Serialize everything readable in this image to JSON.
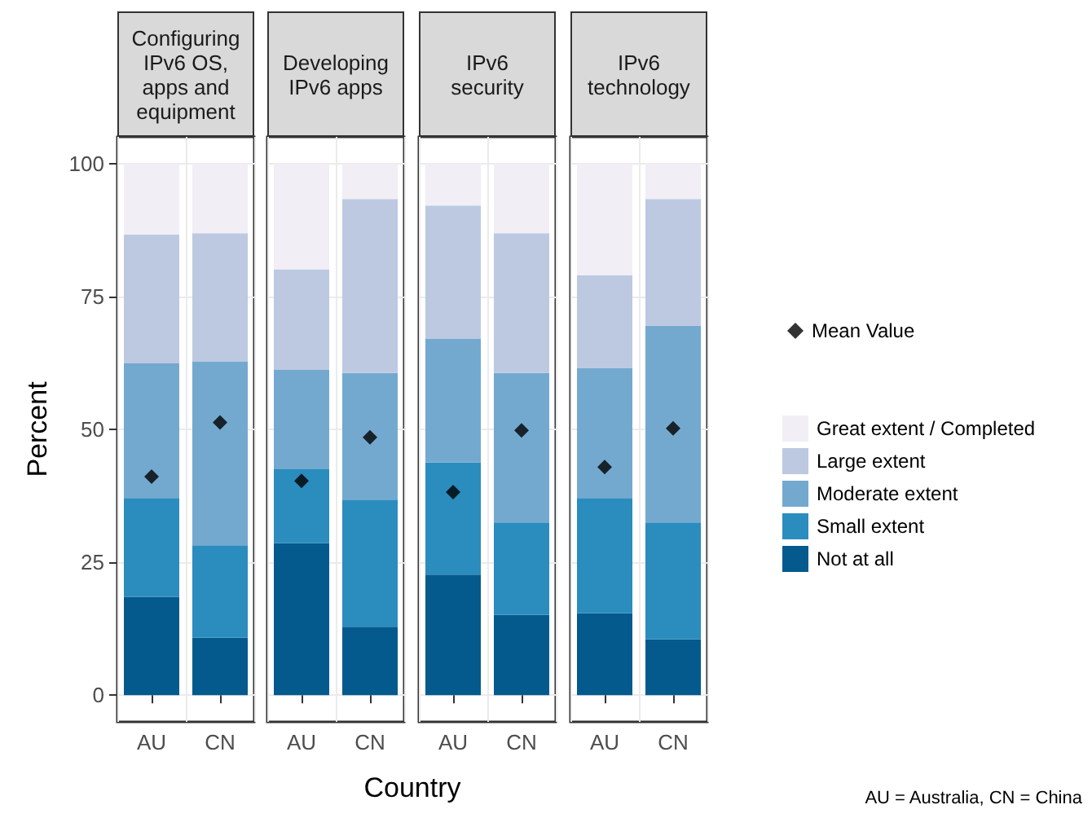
{
  "chart_data": [
    {
      "type": "bar",
      "title": "Configuring\nIPv6 OS,\napps and\nequipment",
      "ylabel": "Percent",
      "xlabel": "Country",
      "categories": [
        "AU",
        "CN"
      ],
      "stacked": true,
      "ylim": [
        -5,
        105
      ],
      "yticks": [
        0,
        25,
        50,
        75,
        100
      ],
      "grid": true,
      "legend": false,
      "series": [
        {
          "color": "#045a8d",
          "values": [
            18.5,
            10.8
          ]
        },
        {
          "color": "#2b8cbe",
          "values": [
            18.6,
            17.4
          ]
        },
        {
          "color": "#74a9cf",
          "values": [
            25.3,
            34.5
          ]
        },
        {
          "color": "#bdc9e1",
          "values": [
            24.2,
            24.2
          ]
        },
        {
          "color": "#f1eef6",
          "values": [
            13.4,
            13.1
          ]
        },
        {
          "type": "scatter",
          "marker": "diamond",
          "color": "#000000",
          "x": [
            "AU",
            "CN"
          ],
          "values": [
            41.1,
            51.3
          ]
        }
      ]
    },
    {
      "type": "bar",
      "title": "Developing\nIPv6 apps",
      "categories": [
        "AU",
        "CN"
      ],
      "stacked": true,
      "ylim": [
        -5,
        105
      ],
      "yticks": [
        0,
        25,
        50,
        75,
        100
      ],
      "grid": true,
      "legend": false,
      "tick_labels": "x",
      "series": [
        {
          "color": "#045a8d",
          "values": [
            28.6,
            12.9
          ]
        },
        {
          "color": "#2b8cbe",
          "values": [
            14.0,
            23.9
          ]
        },
        {
          "color": "#74a9cf",
          "values": [
            18.6,
            23.8
          ]
        },
        {
          "color": "#bdc9e1",
          "values": [
            18.9,
            32.7
          ]
        },
        {
          "color": "#f1eef6",
          "values": [
            19.9,
            6.7
          ]
        },
        {
          "type": "scatter",
          "marker": "diamond",
          "color": "#000000",
          "x": [
            "AU",
            "CN"
          ],
          "values": [
            40.3,
            48.5
          ]
        }
      ]
    },
    {
      "type": "bar",
      "title": "IPv6\nsecurity",
      "categories": [
        "AU",
        "CN"
      ],
      "stacked": true,
      "ylim": [
        -5,
        105
      ],
      "yticks": [
        0,
        25,
        50,
        75,
        100
      ],
      "grid": true,
      "legend": false,
      "tick_labels": "x",
      "series": [
        {
          "color": "#045a8d",
          "values": [
            22.7,
            15.1
          ]
        },
        {
          "color": "#2b8cbe",
          "values": [
            21.1,
            17.4
          ]
        },
        {
          "color": "#74a9cf",
          "values": [
            23.2,
            28.1
          ]
        },
        {
          "color": "#bdc9e1",
          "values": [
            25.1,
            26.3
          ]
        },
        {
          "color": "#f1eef6",
          "values": [
            7.9,
            13.1
          ]
        },
        {
          "type": "scatter",
          "marker": "diamond",
          "color": "#000000",
          "x": [
            "AU",
            "CN"
          ],
          "values": [
            38.2,
            49.8
          ]
        }
      ]
    },
    {
      "type": "bar",
      "title": "IPv6\ntechnology",
      "categories": [
        "AU",
        "CN"
      ],
      "stacked": true,
      "ylim": [
        -5,
        105
      ],
      "yticks": [
        0,
        25,
        50,
        75,
        100
      ],
      "grid": true,
      "legend": "right",
      "tick_labels": "x",
      "annotations": [
        "AU = Australia, CN = China"
      ],
      "series": [
        {
          "name": "Not at all",
          "color": "#045a8d",
          "values": [
            15.4,
            10.5
          ]
        },
        {
          "name": "Small extent",
          "color": "#2b8cbe",
          "values": [
            21.7,
            22.0
          ]
        },
        {
          "name": "Moderate extent",
          "color": "#74a9cf",
          "values": [
            24.4,
            37.0
          ]
        },
        {
          "name": "Large extent",
          "color": "#bdc9e1",
          "values": [
            17.5,
            23.8
          ]
        },
        {
          "name": "Great extent / Completed",
          "color": "#f1eef6",
          "values": [
            21.0,
            6.7
          ]
        },
        {
          "name": "Mean Value",
          "type": "scatter",
          "marker": "diamond",
          "color": "#000000",
          "x": [
            "AU",
            "CN"
          ],
          "values": [
            42.9,
            50.2
          ]
        }
      ]
    }
  ]
}
